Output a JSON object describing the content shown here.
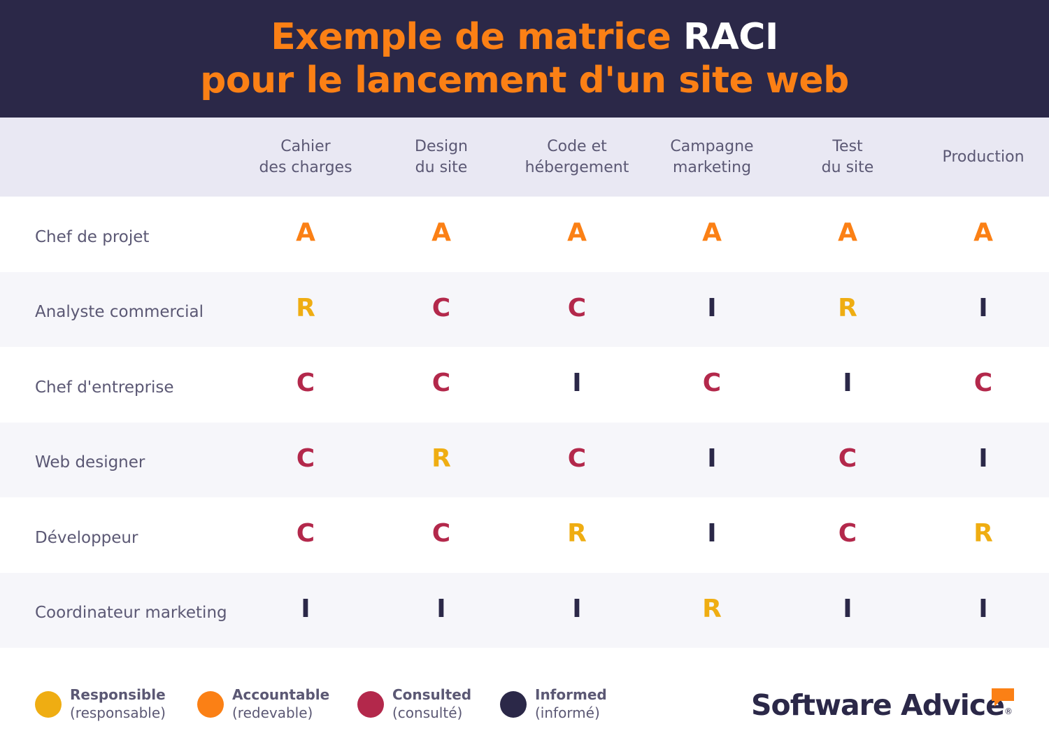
{
  "title": {
    "line1_part1": "Exemple de matrice ",
    "line1_part2": "RACI",
    "line2": "pour le lancement d'un site web"
  },
  "columns": [
    {
      "line1": "Cahier",
      "line2": "des charges"
    },
    {
      "line1": "Design",
      "line2": "du site"
    },
    {
      "line1": "Code et",
      "line2": "hébergement"
    },
    {
      "line1": "Campagne",
      "line2": "marketing"
    },
    {
      "line1": "Test",
      "line2": "du site"
    },
    {
      "line1": "Production",
      "line2": ""
    }
  ],
  "rows": [
    {
      "role": "Chef de projet",
      "values": [
        "A",
        "A",
        "A",
        "A",
        "A",
        "A"
      ]
    },
    {
      "role": "Analyste commercial",
      "values": [
        "R",
        "C",
        "C",
        "I",
        "R",
        "I"
      ]
    },
    {
      "role": "Chef d'entreprise",
      "values": [
        "C",
        "C",
        "I",
        "C",
        "I",
        "C"
      ]
    },
    {
      "role": "Web designer",
      "values": [
        "C",
        "R",
        "C",
        "I",
        "C",
        "I"
      ]
    },
    {
      "role": "Développeur",
      "values": [
        "C",
        "C",
        "R",
        "I",
        "C",
        "R"
      ]
    },
    {
      "role": "Coordinateur marketing",
      "values": [
        "I",
        "I",
        "I",
        "R",
        "I",
        "I"
      ]
    }
  ],
  "legend": [
    {
      "title": "Responsible",
      "subtitle": "(responsable)",
      "color": "#efad12"
    },
    {
      "title": "Accountable",
      "subtitle": "(redevable)",
      "color": "#fb8015"
    },
    {
      "title": "Consulted",
      "subtitle": "(consulté)",
      "color": "#b3284b"
    },
    {
      "title": "Informed",
      "subtitle": "(informé)",
      "color": "#2b2848"
    }
  ],
  "brand": {
    "name": "Software Advice",
    "mark": "®",
    "bubble_icon": "speech-bubble-icon",
    "color": "#fb8015"
  },
  "colors": {
    "header_bg": "#2b2848",
    "title_orange": "#fb8015",
    "responsible": "#efad12",
    "accountable": "#fb8015",
    "consulted": "#b3284b",
    "informed": "#2b2848"
  }
}
